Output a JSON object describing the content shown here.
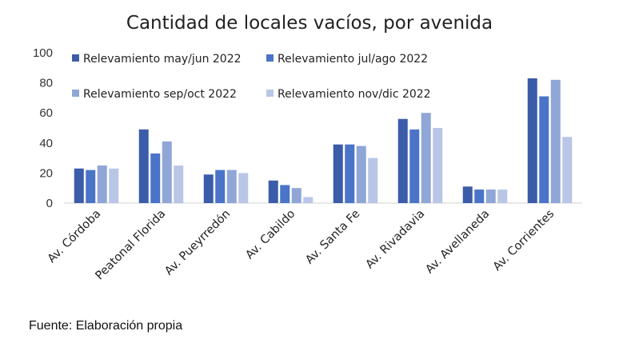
{
  "chart_data": {
    "type": "bar",
    "title": "Cantidad de locales vacíos, por avenida",
    "categories": [
      "Av. Córdoba",
      "Peatonal Florida",
      "Av. Pueyrredón",
      "Av. Cabildo",
      "Av. Santa Fe",
      "Av. Rivadavia",
      "Av. Avellaneda",
      "Av. Corrientes"
    ],
    "series": [
      {
        "name": "Relevamiento may/jun 2022",
        "color": "#3b5ca8",
        "values": [
          23,
          49,
          19,
          15,
          39,
          56,
          11,
          83
        ]
      },
      {
        "name": "Relevamiento jul/ago 2022",
        "color": "#4a74c8",
        "values": [
          22,
          33,
          22,
          12,
          39,
          49,
          9,
          71
        ]
      },
      {
        "name": "Relevamiento sep/oct 2022",
        "color": "#8fa6d6",
        "values": [
          25,
          41,
          22,
          10,
          38,
          60,
          9,
          82
        ]
      },
      {
        "name": "Relevamiento nov/dic 2022",
        "color": "#b9c6e6",
        "values": [
          23,
          25,
          20,
          4,
          30,
          50,
          9,
          44
        ]
      }
    ],
    "ylim": [
      0,
      100
    ],
    "yticks": [
      "0",
      "20",
      "40",
      "60",
      "80",
      "100"
    ],
    "grid": false,
    "legend_position": "top"
  },
  "footer": {
    "source": "Fuente: Elaboración propia"
  }
}
